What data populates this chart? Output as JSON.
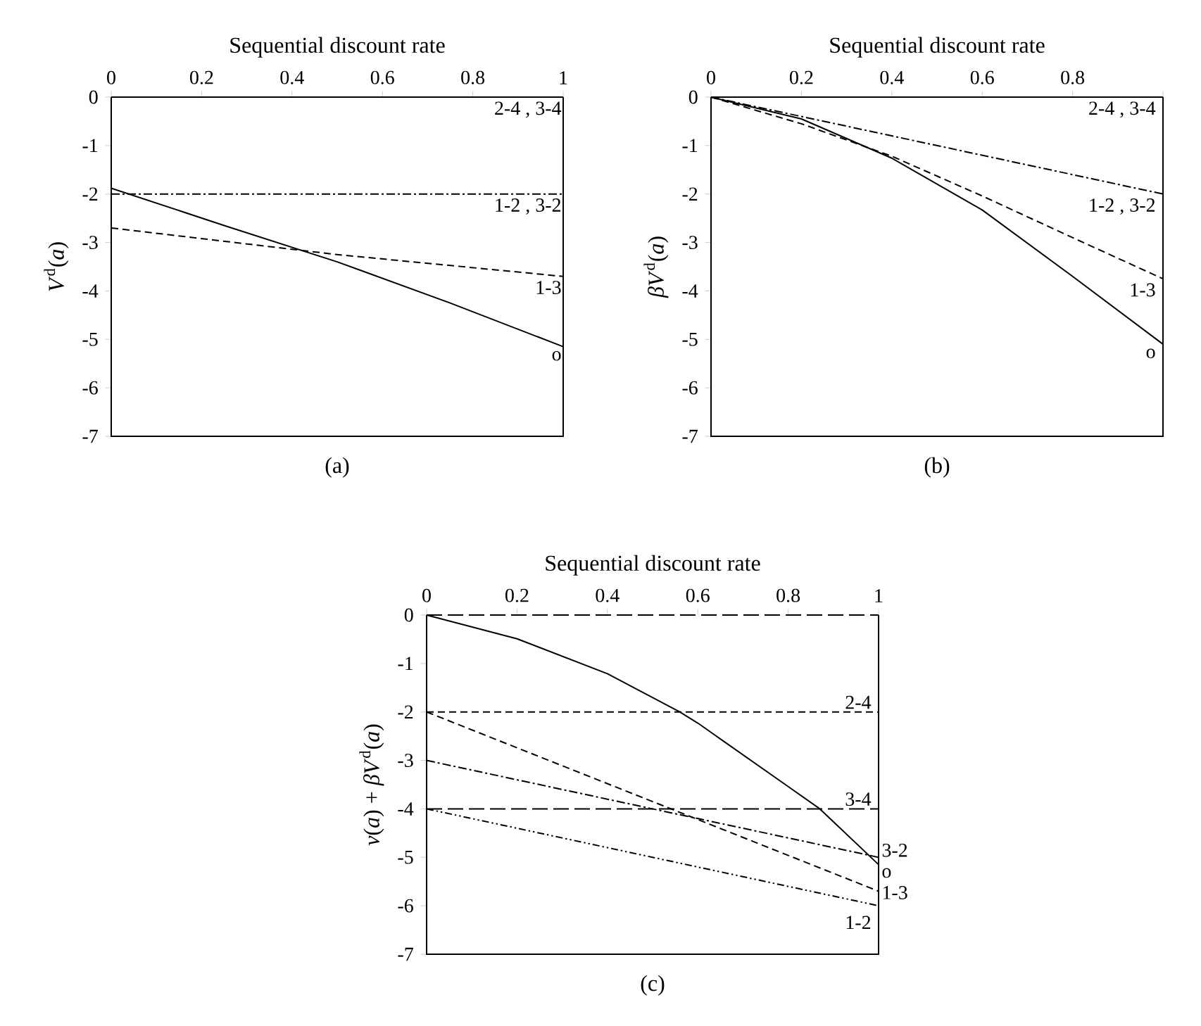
{
  "chart_data": [
    {
      "type": "line",
      "xlabel": "Sequential discount rate",
      "ylabel": "*V*$^{d}$(*a*)",
      "annotations": [
        "(a)"
      ],
      "xlim": [
        0,
        1
      ],
      "ylim": [
        -7,
        0
      ],
      "xticks": [
        0,
        0.2,
        0.4,
        0.6,
        0.8,
        1
      ],
      "yticks": [
        -7,
        -6,
        -5,
        -4,
        -3,
        -2,
        -1,
        0
      ],
      "grid": false,
      "legend": false,
      "marker": "none",
      "series": [
        {
          "name": "2-4 , 3-4",
          "color": "#000000",
          "line_style": "solid",
          "x": [
            0,
            1
          ],
          "values": [
            0,
            0
          ]
        },
        {
          "name": "1-2 , 3-2",
          "color": "#000000",
          "line_style": "dashdot",
          "x": [
            0,
            1
          ],
          "values": [
            -2,
            -2
          ]
        },
        {
          "name": "1-3",
          "color": "#000000",
          "line_style": "dashed",
          "x": [
            0,
            0.5,
            1
          ],
          "values": [
            -2.7,
            -3.25,
            -3.7
          ]
        },
        {
          "name": "o",
          "color": "#000000",
          "line_style": "solid",
          "x": [
            0,
            0.25,
            0.5,
            0.75,
            1
          ],
          "values": [
            -1.88,
            -2.65,
            -3.4,
            -4.25,
            -5.15
          ]
        }
      ]
    },
    {
      "type": "line",
      "xlabel": "Sequential discount rate",
      "ylabel": "*βV*$^{d}$(*a*)",
      "annotations": [
        "(b)"
      ],
      "xlim": [
        0,
        1
      ],
      "ylim": [
        -7,
        0
      ],
      "xticks": [
        0,
        0.2,
        0.4,
        0.6,
        0.8,
        {
          "value": 1,
          "label": null
        }
      ],
      "yticks": [
        -7,
        -6,
        -5,
        -4,
        -3,
        -2,
        -1,
        0
      ],
      "grid": false,
      "legend": false,
      "marker": "none",
      "series": [
        {
          "name": "2-4 , 3-4",
          "color": "#000000",
          "line_style": "solid",
          "x": [
            0,
            1
          ],
          "values": [
            0,
            0
          ]
        },
        {
          "name": "1-2 , 3-2",
          "color": "#000000",
          "line_style": "dashdot",
          "x": [
            0,
            1
          ],
          "values": [
            0,
            -2
          ]
        },
        {
          "name": "1-3",
          "color": "#000000",
          "line_style": "dashed",
          "x": [
            0,
            0.2,
            0.4,
            0.6,
            0.8,
            1
          ],
          "values": [
            0,
            -0.55,
            -1.22,
            -2.04,
            -2.9,
            -3.75
          ]
        },
        {
          "name": "o",
          "color": "#000000",
          "line_style": "solid",
          "x": [
            0,
            0.2,
            0.4,
            0.6,
            0.8,
            1
          ],
          "values": [
            0,
            -0.45,
            -1.26,
            -2.33,
            -3.7,
            -5.1
          ]
        }
      ]
    },
    {
      "type": "line",
      "xlabel": "Sequential discount rate",
      "ylabel": "*v*(*a*) + *βV*$^{d}$(*a*)",
      "annotations": [
        "(c)"
      ],
      "xlim": [
        0,
        1
      ],
      "ylim": [
        -7,
        0
      ],
      "xticks": [
        0,
        0.2,
        0.4,
        0.6,
        0.8,
        1
      ],
      "yticks": [
        -7,
        -6,
        -5,
        -4,
        -3,
        -2,
        -1,
        0
      ],
      "grid": false,
      "legend": false,
      "marker": "none",
      "series": [
        {
          "color": "#000000",
          "line_style": "longdash",
          "x": [
            0,
            1
          ],
          "values": [
            0,
            0
          ]
        },
        {
          "name": "2-4",
          "color": "#000000",
          "line_style": "dashed",
          "x": [
            0,
            1
          ],
          "values": [
            -2,
            -2
          ]
        },
        {
          "name": "3-4",
          "color": "#000000",
          "line_style": "longdash",
          "x": [
            0,
            1
          ],
          "values": [
            -4,
            -4
          ]
        },
        {
          "name": "3-2",
          "color": "#000000",
          "line_style": "dashdot",
          "x": [
            0,
            1
          ],
          "values": [
            -3,
            -5
          ]
        },
        {
          "name": "1-3",
          "color": "#000000",
          "line_style": "dashed",
          "x": [
            0,
            1
          ],
          "values": [
            -2,
            -5.7
          ]
        },
        {
          "name": "1-2",
          "color": "#000000",
          "line_style": "dashdotdot",
          "x": [
            0,
            1
          ],
          "values": [
            -4,
            -6
          ]
        },
        {
          "name": "o",
          "color": "#000000",
          "line_style": "solid",
          "x": [
            0,
            0.2,
            0.4,
            0.56,
            0.6,
            0.8,
            0.87,
            1
          ],
          "values": [
            0,
            -0.49,
            -1.21,
            -2,
            -2.23,
            -3.54,
            -4,
            -5.15
          ]
        }
      ]
    }
  ]
}
